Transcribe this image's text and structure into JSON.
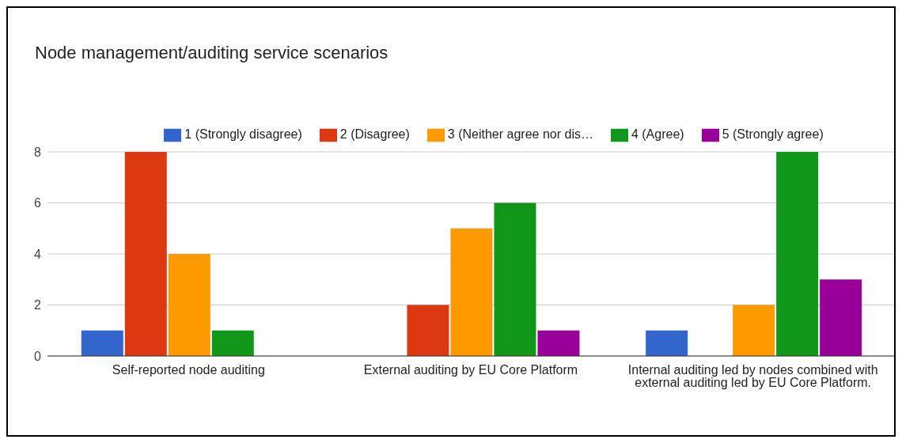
{
  "chart_data": {
    "type": "bar",
    "title": "Node management/auditing service scenarios",
    "categories": [
      "Self-reported node auditing",
      "External auditing by EU Core Platform",
      "Internal auditing led by nodes combined with external auditing led by EU Core Platform."
    ],
    "series": [
      {
        "name": "1 (Strongly disagree)",
        "color": "#3366cc",
        "values": [
          1,
          0,
          1
        ]
      },
      {
        "name": "2 (Disagree)",
        "color": "#dc3912",
        "values": [
          8,
          2,
          0
        ]
      },
      {
        "name": "3 (Neither agree nor dis…",
        "color": "#ff9900",
        "values": [
          4,
          5,
          2
        ]
      },
      {
        "name": "4 (Agree)",
        "color": "#109618",
        "values": [
          1,
          6,
          8
        ]
      },
      {
        "name": "5 (Strongly agree)",
        "color": "#990099",
        "values": [
          0,
          1,
          3
        ]
      }
    ],
    "ylim": [
      0,
      8
    ],
    "yticks": [
      0,
      2,
      4,
      6,
      8
    ],
    "grid": "y",
    "legend": "top"
  }
}
